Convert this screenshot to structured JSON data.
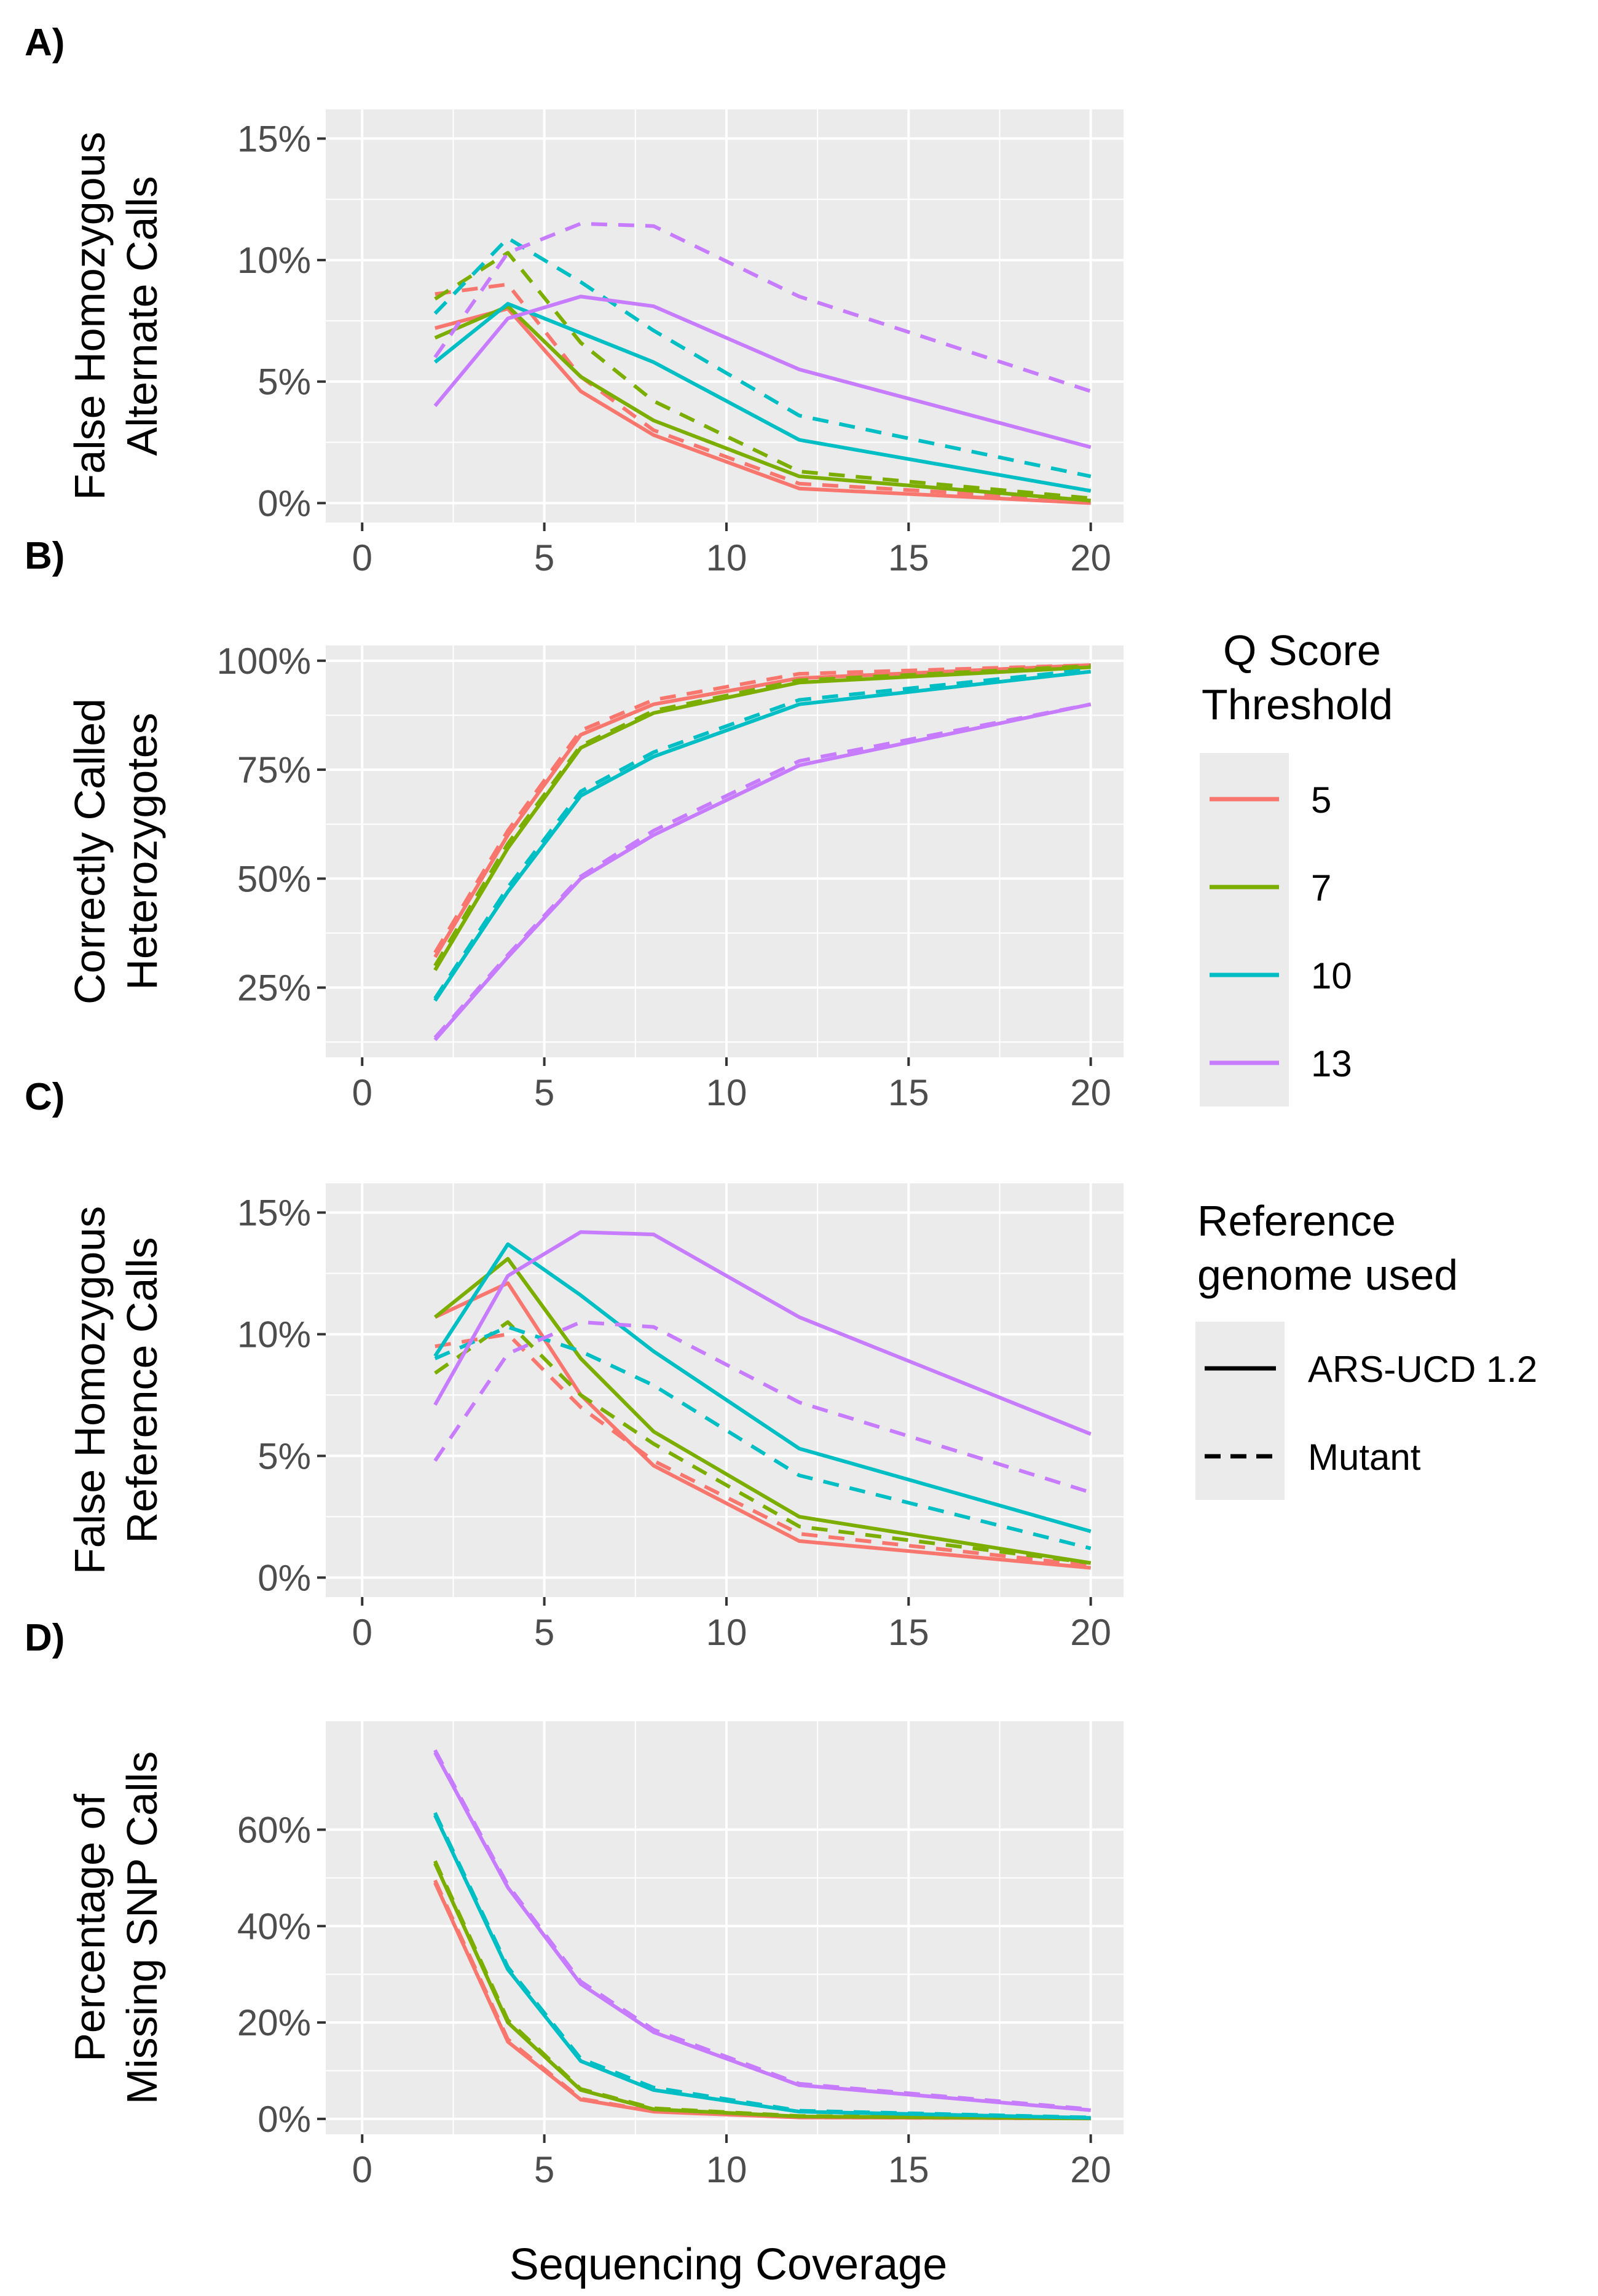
{
  "xlabel": "Sequencing Coverage",
  "colors": {
    "5": "#F8766D",
    "7": "#7CAE00",
    "10": "#00BFC4",
    "13": "#C77CFF"
  },
  "legend_q": {
    "title_line1": "Q Score",
    "title_line2": "Threshold",
    "items": [
      "5",
      "7",
      "10",
      "13"
    ]
  },
  "legend_ref": {
    "title_line1": "Reference",
    "title_line2": "genome used",
    "items": [
      "ARS-UCD 1.2",
      "Mutant"
    ]
  },
  "chart_data": [
    {
      "type": "line",
      "panel_label": "A)",
      "ylabel_line1": "False Homozygous",
      "ylabel_line2": "Alternate Calls",
      "xlim": [
        -1,
        20.9
      ],
      "ylim": [
        -0.8,
        16.2
      ],
      "xticks": [
        0,
        5,
        10,
        15,
        20
      ],
      "xtick_labels": [
        "0",
        "5",
        "10",
        "15",
        "20"
      ],
      "yticks": [
        0,
        5,
        10,
        15
      ],
      "ytick_labels": [
        "0%",
        "5%",
        "10%",
        "15%"
      ],
      "x": [
        2,
        4,
        6,
        8,
        12,
        20
      ],
      "series": [
        {
          "name": "5 ARS-UCD 1.2",
          "q": "5",
          "ref": "ARS-UCD 1.2",
          "values": [
            7.2,
            8.0,
            4.6,
            2.8,
            0.6,
            0.0
          ]
        },
        {
          "name": "5 Mutant",
          "q": "5",
          "ref": "Mutant",
          "values": [
            8.6,
            9.0,
            5.2,
            3.0,
            0.8,
            0.1
          ]
        },
        {
          "name": "7 ARS-UCD 1.2",
          "q": "7",
          "ref": "ARS-UCD 1.2",
          "values": [
            6.8,
            8.1,
            5.2,
            3.4,
            1.1,
            0.1
          ]
        },
        {
          "name": "7 Mutant",
          "q": "7",
          "ref": "Mutant",
          "values": [
            8.4,
            10.3,
            6.6,
            4.2,
            1.3,
            0.2
          ]
        },
        {
          "name": "10 ARS-UCD 1.2",
          "q": "10",
          "ref": "ARS-UCD 1.2",
          "values": [
            5.8,
            8.2,
            7.0,
            5.8,
            2.6,
            0.5
          ]
        },
        {
          "name": "10 Mutant",
          "q": "10",
          "ref": "Mutant",
          "values": [
            7.8,
            10.9,
            9.1,
            7.1,
            3.6,
            1.1
          ]
        },
        {
          "name": "13 ARS-UCD 1.2",
          "q": "13",
          "ref": "ARS-UCD 1.2",
          "values": [
            4.0,
            7.6,
            8.5,
            8.1,
            5.5,
            2.3
          ]
        },
        {
          "name": "13 Mutant",
          "q": "13",
          "ref": "Mutant",
          "values": [
            6.0,
            10.3,
            11.5,
            11.4,
            8.5,
            4.6
          ]
        }
      ]
    },
    {
      "type": "line",
      "panel_label": "B)",
      "ylabel_line1": "Correctly Called",
      "ylabel_line2": "Heterozygotes",
      "xlim": [
        -1,
        20.9
      ],
      "ylim": [
        9,
        103.5
      ],
      "xticks": [
        0,
        5,
        10,
        15,
        20
      ],
      "xtick_labels": [
        "0",
        "5",
        "10",
        "15",
        "20"
      ],
      "yticks": [
        25,
        50,
        75,
        100
      ],
      "ytick_labels": [
        "25%",
        "50%",
        "75%",
        "100%"
      ],
      "x": [
        2,
        4,
        6,
        8,
        12,
        20
      ],
      "series": [
        {
          "name": "5 ARS-UCD 1.2",
          "q": "5",
          "ref": "ARS-UCD 1.2",
          "values": [
            32,
            60,
            83,
            90,
            96,
            99
          ]
        },
        {
          "name": "5 Mutant",
          "q": "5",
          "ref": "Mutant",
          "values": [
            33,
            61,
            84,
            91,
            97,
            99
          ]
        },
        {
          "name": "7 ARS-UCD 1.2",
          "q": "7",
          "ref": "ARS-UCD 1.2",
          "values": [
            29,
            57,
            80,
            88,
            95,
            98.5
          ]
        },
        {
          "name": "7 Mutant",
          "q": "7",
          "ref": "Mutant",
          "values": [
            30,
            58,
            80.5,
            88.5,
            95.5,
            98.8
          ]
        },
        {
          "name": "10 ARS-UCD 1.2",
          "q": "10",
          "ref": "ARS-UCD 1.2",
          "values": [
            22,
            47,
            69,
            78,
            90,
            97.5
          ]
        },
        {
          "name": "10 Mutant",
          "q": "10",
          "ref": "Mutant",
          "values": [
            22.5,
            48,
            70,
            79,
            91,
            98
          ]
        },
        {
          "name": "13 ARS-UCD 1.2",
          "q": "13",
          "ref": "ARS-UCD 1.2",
          "values": [
            13,
            32,
            50,
            60,
            76,
            90
          ]
        },
        {
          "name": "13 Mutant",
          "q": "13",
          "ref": "Mutant",
          "values": [
            13.5,
            32.5,
            50.5,
            61,
            77,
            90
          ]
        }
      ]
    },
    {
      "type": "line",
      "panel_label": "C)",
      "ylabel_line1": "False Homozygous",
      "ylabel_line2": "Reference Calls",
      "xlim": [
        -1,
        20.9
      ],
      "ylim": [
        -0.8,
        16.2
      ],
      "xticks": [
        0,
        5,
        10,
        15,
        20
      ],
      "xtick_labels": [
        "0",
        "5",
        "10",
        "15",
        "20"
      ],
      "yticks": [
        0,
        5,
        10,
        15
      ],
      "ytick_labels": [
        "0%",
        "5%",
        "10%",
        "15%"
      ],
      "x": [
        2,
        4,
        6,
        8,
        12,
        20
      ],
      "series": [
        {
          "name": "5 ARS-UCD 1.2",
          "q": "5",
          "ref": "ARS-UCD 1.2",
          "values": [
            10.7,
            12.1,
            7.5,
            4.6,
            1.5,
            0.4
          ]
        },
        {
          "name": "5 Mutant",
          "q": "5",
          "ref": "Mutant",
          "values": [
            9.5,
            10.0,
            7.0,
            4.8,
            1.8,
            0.5
          ]
        },
        {
          "name": "7 ARS-UCD 1.2",
          "q": "7",
          "ref": "ARS-UCD 1.2",
          "values": [
            10.7,
            13.1,
            9.0,
            6.0,
            2.5,
            0.6
          ]
        },
        {
          "name": "7 Mutant",
          "q": "7",
          "ref": "Mutant",
          "values": [
            8.4,
            10.5,
            7.5,
            5.5,
            2.1,
            0.6
          ]
        },
        {
          "name": "10 ARS-UCD 1.2",
          "q": "10",
          "ref": "ARS-UCD 1.2",
          "values": [
            9.1,
            13.7,
            11.6,
            9.3,
            5.3,
            1.9
          ]
        },
        {
          "name": "10 Mutant",
          "q": "10",
          "ref": "Mutant",
          "values": [
            9.0,
            10.3,
            9.3,
            7.9,
            4.2,
            1.2
          ]
        },
        {
          "name": "13 ARS-UCD 1.2",
          "q": "13",
          "ref": "ARS-UCD 1.2",
          "values": [
            7.1,
            12.4,
            14.2,
            14.1,
            10.7,
            5.9
          ]
        },
        {
          "name": "13 Mutant",
          "q": "13",
          "ref": "Mutant",
          "values": [
            4.8,
            9.2,
            10.5,
            10.3,
            7.2,
            3.5
          ]
        }
      ]
    },
    {
      "type": "line",
      "panel_label": "D)",
      "ylabel_line1": "Percentage of",
      "ylabel_line2": "Missing SNP Calls",
      "xlim": [
        -1,
        20.9
      ],
      "ylim": [
        -3.2,
        82.5
      ],
      "xticks": [
        0,
        5,
        10,
        15,
        20
      ],
      "xtick_labels": [
        "0",
        "5",
        "10",
        "15",
        "20"
      ],
      "yticks": [
        0,
        20,
        40,
        60
      ],
      "ytick_labels": [
        "0%",
        "20%",
        "40%",
        "60%"
      ],
      "x": [
        2,
        4,
        6,
        8,
        12,
        20
      ],
      "series": [
        {
          "name": "5 ARS-UCD 1.2",
          "q": "5",
          "ref": "ARS-UCD 1.2",
          "values": [
            49,
            16,
            4,
            1.5,
            0.3,
            0.1
          ]
        },
        {
          "name": "5 Mutant",
          "q": "5",
          "ref": "Mutant",
          "values": [
            49.5,
            16.5,
            4.2,
            1.6,
            0.3,
            0.1
          ]
        },
        {
          "name": "7 ARS-UCD 1.2",
          "q": "7",
          "ref": "ARS-UCD 1.2",
          "values": [
            53,
            20,
            6,
            2,
            0.5,
            0.1
          ]
        },
        {
          "name": "7 Mutant",
          "q": "7",
          "ref": "Mutant",
          "values": [
            53.5,
            20.5,
            6.2,
            2.2,
            0.6,
            0.1
          ]
        },
        {
          "name": "10 ARS-UCD 1.2",
          "q": "10",
          "ref": "ARS-UCD 1.2",
          "values": [
            63,
            31,
            12,
            6,
            1.5,
            0.2
          ]
        },
        {
          "name": "10 Mutant",
          "q": "10",
          "ref": "Mutant",
          "values": [
            63.5,
            31.5,
            12.5,
            6.5,
            1.7,
            0.3
          ]
        },
        {
          "name": "13 ARS-UCD 1.2",
          "q": "13",
          "ref": "ARS-UCD 1.2",
          "values": [
            76,
            48,
            28,
            18,
            7,
            1.8
          ]
        },
        {
          "name": "13 Mutant",
          "q": "13",
          "ref": "Mutant",
          "values": [
            76.5,
            48.5,
            28.5,
            18.5,
            7.3,
            2.0
          ]
        }
      ]
    }
  ]
}
